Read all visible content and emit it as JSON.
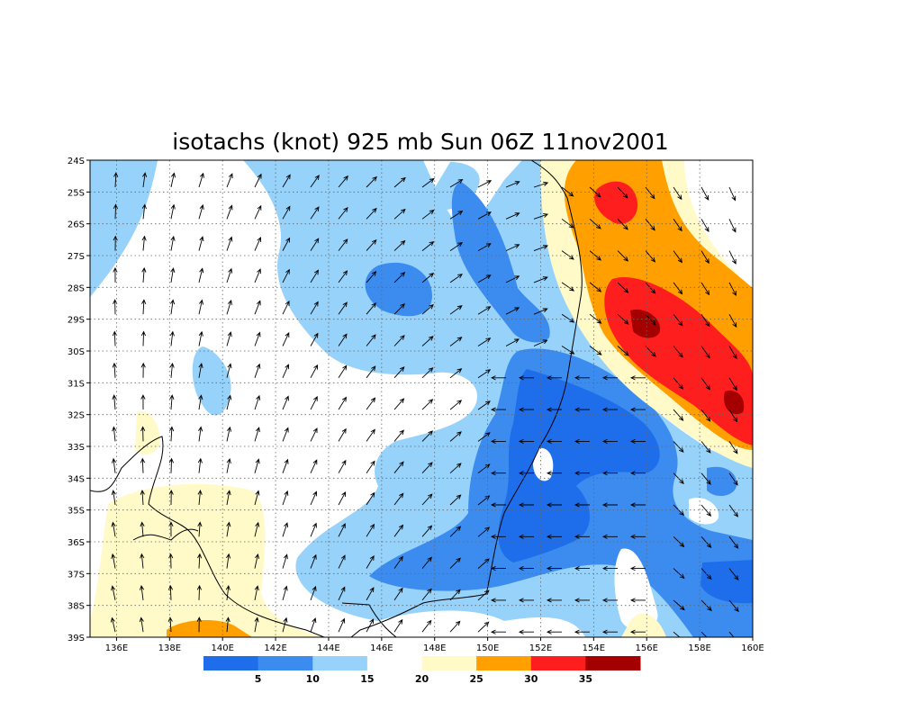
{
  "map": {
    "title": "isotachs (knot) 925 mb Sun 06Z 11nov2001",
    "xlim": [
      135,
      160
    ],
    "ylim": [
      -39,
      -24
    ],
    "xticks": [
      {
        "value": 136,
        "label": "136E"
      },
      {
        "value": 138,
        "label": "138E"
      },
      {
        "value": 140,
        "label": "140E"
      },
      {
        "value": 142,
        "label": "142E"
      },
      {
        "value": 144,
        "label": "144E"
      },
      {
        "value": 146,
        "label": "146E"
      },
      {
        "value": 148,
        "label": "148E"
      },
      {
        "value": 150,
        "label": "150E"
      },
      {
        "value": 152,
        "label": "152E"
      },
      {
        "value": 154,
        "label": "154E"
      },
      {
        "value": 156,
        "label": "156E"
      },
      {
        "value": 158,
        "label": "158E"
      },
      {
        "value": 160,
        "label": "160E"
      }
    ],
    "yticks": [
      {
        "value": -24,
        "label": "24S"
      },
      {
        "value": -25,
        "label": "25S"
      },
      {
        "value": -26,
        "label": "26S"
      },
      {
        "value": -27,
        "label": "27S"
      },
      {
        "value": -28,
        "label": "28S"
      },
      {
        "value": -29,
        "label": "29S"
      },
      {
        "value": -30,
        "label": "30S"
      },
      {
        "value": -31,
        "label": "31S"
      },
      {
        "value": -32,
        "label": "32S"
      },
      {
        "value": -33,
        "label": "33S"
      },
      {
        "value": -34,
        "label": "34S"
      },
      {
        "value": -35,
        "label": "35S"
      },
      {
        "value": -36,
        "label": "36S"
      },
      {
        "value": -37,
        "label": "37S"
      },
      {
        "value": -38,
        "label": "38S"
      },
      {
        "value": -39,
        "label": "39S"
      }
    ],
    "colorbar": {
      "levels": [
        5,
        10,
        15,
        20,
        25,
        30,
        35
      ],
      "colors": [
        "#1e6eeb",
        "#3c8cf0",
        "#96d2fa",
        "#ffffff",
        "#fffac8",
        "#ffa000",
        "#ff1e1e",
        "#a50000"
      ]
    }
  }
}
